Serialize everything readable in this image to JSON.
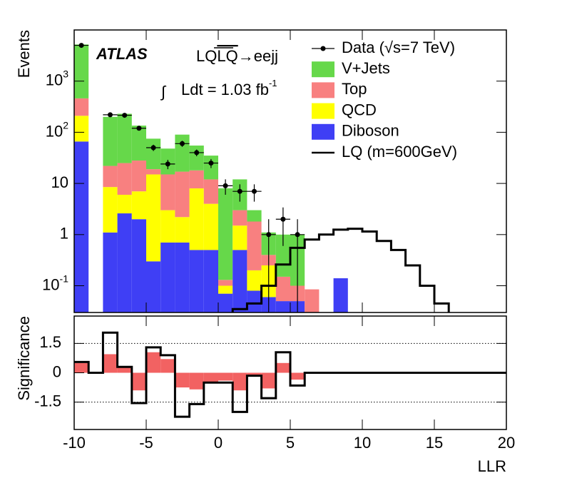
{
  "chart_data": [
    {
      "type": "histogram",
      "ylabel": "Events",
      "log_y": true,
      "xlim": [
        -10,
        20
      ],
      "ylim": [
        0.03,
        10000
      ],
      "yticks": [
        {
          "value": 0.1,
          "label": "10",
          "exponent": "-1"
        },
        1,
        10,
        {
          "value": 100,
          "label": "10",
          "exponent": "2"
        },
        {
          "value": 1000,
          "label": "10",
          "exponent": "3"
        }
      ],
      "bins": [
        -10,
        -9,
        -8,
        -7,
        -6,
        -5,
        -4,
        -3,
        -2,
        -1,
        0,
        1,
        2,
        3,
        4,
        5,
        6,
        7,
        8,
        9,
        10,
        11,
        12,
        13,
        14,
        15,
        16,
        17,
        18,
        19,
        20
      ],
      "legend": "upper right",
      "annotations": {
        "experiment": "ATLAS",
        "process": {
          "particle": "LQ",
          "antiparticle": "LQ",
          "decay": "→eejj"
        },
        "luminosity": {
          "integral": "∫",
          "text": "Ldt = 1.03 fb",
          "exponent": "-1"
        }
      },
      "series": [
        {
          "name": "Data (√s=7 TeV)",
          "style": "points",
          "color": "#000000",
          "values": [
            5000,
            null,
            220,
            215,
            120,
            50,
            24,
            60,
            40,
            25,
            9,
            7,
            7,
            1,
            2,
            1,
            null,
            null,
            null,
            null,
            null,
            null,
            null,
            null,
            null,
            null,
            null,
            null,
            null,
            null
          ],
          "errors": [
            71,
            null,
            15,
            15,
            11,
            7,
            5,
            8,
            6,
            5,
            3,
            2.6,
            2.6,
            1,
            1.4,
            1,
            null,
            null,
            null,
            null,
            null,
            null,
            null,
            null,
            null,
            null,
            null,
            null,
            null,
            null
          ]
        },
        {
          "name": "V+Jets",
          "style": "stacked",
          "color": "#66d84a",
          "values": [
            4740,
            null,
            178,
            205,
            107,
            56,
            33,
            73,
            37,
            23,
            7.9,
            9,
            1.2,
            0.7,
            0.85,
            0.9,
            null,
            null,
            null,
            null,
            null,
            null,
            null,
            null,
            null,
            null,
            null,
            null,
            null,
            null
          ]
        },
        {
          "name": "Top",
          "style": "stacked",
          "color": "#f88080",
          "values": [
            250,
            null,
            13.5,
            19,
            21,
            4,
            12,
            14.8,
            10,
            8,
            0.03,
            1.5,
            1.6,
            0.15,
            0.1,
            0.05,
            0.085,
            null,
            null,
            null,
            null,
            null,
            null,
            null,
            null,
            null,
            null,
            null,
            null,
            null
          ]
        },
        {
          "name": "QCD",
          "style": "stacked",
          "color": "#ffff00",
          "values": [
            144,
            null,
            7.4,
            3.4,
            5,
            14.7,
            2.3,
            1.5,
            7.5,
            3.5,
            0.03,
            1,
            0.12,
            0.19,
            null,
            null,
            null,
            null,
            null,
            null,
            null,
            null,
            null,
            null,
            null,
            null,
            null,
            null,
            null,
            null
          ]
        },
        {
          "name": "Diboson",
          "style": "stacked",
          "color": "#3f3ff5",
          "values": [
            66,
            null,
            1.1,
            2.6,
            2,
            0.3,
            0.7,
            0.7,
            0.5,
            0.5,
            0.07,
            0.5,
            0.08,
            0.06,
            0.05,
            0.05,
            null,
            null,
            0.14,
            null,
            null,
            null,
            null,
            null,
            null,
            null,
            null,
            null,
            null,
            null
          ]
        },
        {
          "name": "LQ (m=600GeV)",
          "style": "step",
          "color": "#000000",
          "values": [
            null,
            null,
            null,
            null,
            null,
            null,
            null,
            null,
            null,
            null,
            null,
            0.035,
            0.045,
            0.1,
            0.26,
            0.55,
            0.8,
            1.0,
            1.25,
            1.3,
            1.15,
            0.75,
            0.5,
            0.25,
            0.1,
            0.045,
            null,
            null,
            null,
            null
          ]
        }
      ]
    },
    {
      "type": "histogram",
      "ylabel": "Significance",
      "xlabel": "LLR",
      "xlim": [
        -10,
        20
      ],
      "ylim": [
        -2.9,
        2.9
      ],
      "xticks": [
        -10,
        -5,
        0,
        5,
        10,
        15,
        20
      ],
      "yticks": [
        -1.5,
        0,
        1.5
      ],
      "reference_lines": [
        -1.5,
        1.5
      ],
      "bins": [
        -10,
        -9,
        -8,
        -7,
        -6,
        -5,
        -4,
        -3,
        -2,
        -1,
        0,
        1,
        2,
        3,
        4,
        5,
        6,
        7,
        8,
        9,
        10,
        11,
        12,
        13,
        14,
        15,
        16,
        17,
        18,
        19,
        20
      ],
      "series": [
        {
          "style": "fill",
          "color": "#f26262",
          "values": [
            0.5,
            null,
            0.95,
            0.3,
            -0.9,
            1.05,
            0.7,
            -0.75,
            -0.85,
            -0.5,
            -0.4,
            -0.9,
            -0.2,
            -0.8,
            0.5,
            -0.35,
            null,
            null,
            null,
            null,
            null,
            null,
            null,
            null,
            null,
            null,
            null,
            null,
            null,
            null
          ]
        },
        {
          "style": "step",
          "color": "#000000",
          "values": [
            0.55,
            0,
            2.05,
            0.3,
            -1.55,
            1.3,
            0.9,
            -2.25,
            -1.6,
            -0.5,
            -0.5,
            -2,
            -0.15,
            -1.3,
            1.05,
            -0.65,
            0,
            0,
            0,
            0,
            0,
            0,
            0,
            0,
            0,
            0,
            0,
            0,
            0,
            0
          ]
        }
      ]
    }
  ]
}
